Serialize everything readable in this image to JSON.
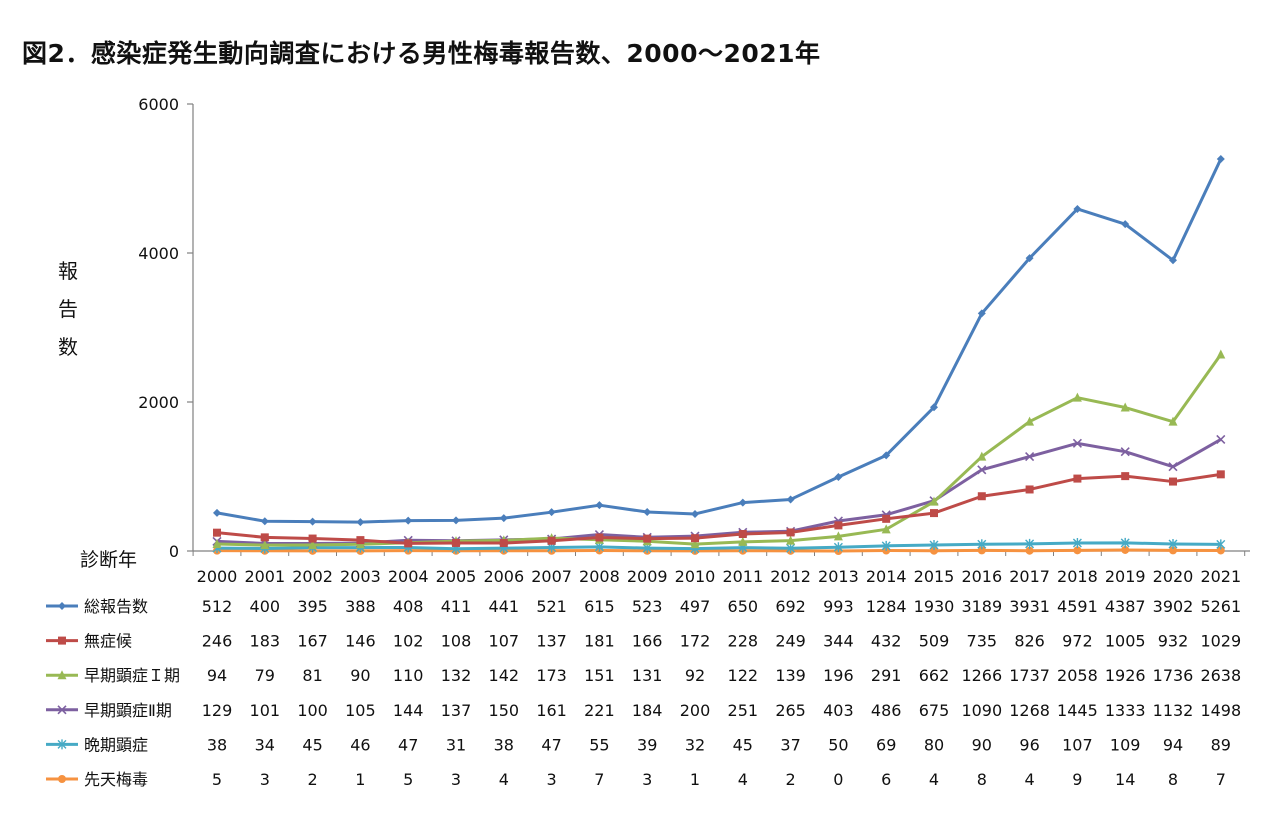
{
  "title": "図2．感染症発生動向調査における男性梅毒報告数、2000～2021年",
  "chart_data": {
    "type": "line",
    "title": "図2．感染症発生動向調査における男性梅毒報告数、2000～2021年",
    "ylabel": "報告数",
    "xlabel": "診断年",
    "ylim": [
      0,
      6000
    ],
    "yticks": [
      "0",
      "2000",
      "4000",
      "6000"
    ],
    "categories": [
      "2000",
      "2001",
      "2002",
      "2003",
      "2004",
      "2005",
      "2006",
      "2007",
      "2008",
      "2009",
      "2010",
      "2011",
      "2012",
      "2013",
      "2014",
      "2015",
      "2016",
      "2017",
      "2018",
      "2019",
      "2020",
      "2021"
    ],
    "series": [
      {
        "name": "総報告数",
        "color": "#4a7ebb",
        "marker": "diamond",
        "values": [
          512,
          400,
          395,
          388,
          408,
          411,
          441,
          521,
          615,
          523,
          497,
          650,
          692,
          993,
          1284,
          1930,
          3189,
          3931,
          4591,
          4387,
          3902,
          5261
        ]
      },
      {
        "name": "無症候",
        "color": "#be4b48",
        "marker": "square",
        "values": [
          246,
          183,
          167,
          146,
          102,
          108,
          107,
          137,
          181,
          166,
          172,
          228,
          249,
          344,
          432,
          509,
          735,
          826,
          972,
          1005,
          932,
          1029
        ]
      },
      {
        "name": "早期顕症Ｉ期",
        "color": "#98b954",
        "marker": "triangle",
        "values": [
          94,
          79,
          81,
          90,
          110,
          132,
          142,
          173,
          151,
          131,
          92,
          122,
          139,
          196,
          291,
          662,
          1266,
          1737,
          2058,
          1926,
          1736,
          2638
        ]
      },
      {
        "name": "早期顕症Ⅱ期",
        "color": "#7d60a0",
        "marker": "x",
        "values": [
          129,
          101,
          100,
          105,
          144,
          137,
          150,
          161,
          221,
          184,
          200,
          251,
          265,
          403,
          486,
          675,
          1090,
          1268,
          1445,
          1333,
          1132,
          1498
        ]
      },
      {
        "name": "晩期顕症",
        "color": "#46aac5",
        "marker": "star",
        "values": [
          38,
          34,
          45,
          46,
          47,
          31,
          38,
          47,
          55,
          39,
          32,
          45,
          37,
          50,
          69,
          80,
          90,
          96,
          107,
          109,
          94,
          89
        ]
      },
      {
        "name": "先天梅毒",
        "color": "#f69240",
        "marker": "circle",
        "values": [
          5,
          3,
          2,
          1,
          5,
          3,
          4,
          3,
          7,
          3,
          1,
          4,
          2,
          0,
          6,
          4,
          8,
          4,
          9,
          14,
          8,
          7
        ]
      }
    ]
  }
}
